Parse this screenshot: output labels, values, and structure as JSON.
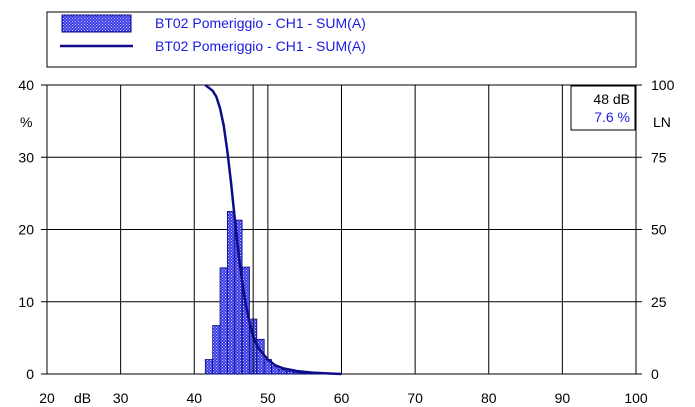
{
  "colors": {
    "bar_fill": "#3a3ae6",
    "bar_edge": "#0a0a80",
    "curve": "#0c0c8c",
    "legend_text": "#1a1ae0",
    "readout_value": "#2020e0",
    "grid": "#000000"
  },
  "chart_data": {
    "type": "bar",
    "title": "",
    "legend": {
      "placement": "top",
      "entries": [
        {
          "kind": "bars",
          "label": "BT02 Pomeriggio - CH1 - SUM(A)"
        },
        {
          "kind": "line",
          "label": "BT02 Pomeriggio - CH1 - SUM(A)"
        }
      ]
    },
    "xlabel": "dB",
    "ylabel_left": "%",
    "ylabel_right": "LN",
    "xlim": [
      20,
      100
    ],
    "ylim_left": [
      0,
      40
    ],
    "ylim_right": [
      0,
      100
    ],
    "x_ticks": [
      "20",
      "30",
      "40",
      "50",
      "60",
      "70",
      "80",
      "90",
      "100"
    ],
    "y_left_ticks": [
      "0",
      "10",
      "20",
      "30",
      "40"
    ],
    "y_right_ticks": [
      "0",
      "25",
      "50",
      "75",
      "100"
    ],
    "grid": true,
    "bin_width_db": 1,
    "series": [
      {
        "name": "BT02 Pomeriggio - CH1 - SUM(A)",
        "kind": "histogram",
        "axis": "left",
        "bins": [
          {
            "x": 42,
            "value": 2.0
          },
          {
            "x": 43,
            "value": 6.7
          },
          {
            "x": 44,
            "value": 14.7
          },
          {
            "x": 45,
            "value": 22.5
          },
          {
            "x": 46,
            "value": 21.3
          },
          {
            "x": 47,
            "value": 14.8
          },
          {
            "x": 48,
            "value": 7.6
          },
          {
            "x": 49,
            "value": 4.8
          },
          {
            "x": 50,
            "value": 2.0
          },
          {
            "x": 51,
            "value": 1.1
          },
          {
            "x": 52,
            "value": 0.6
          },
          {
            "x": 53,
            "value": 0.4
          },
          {
            "x": 54,
            "value": 0.2
          },
          {
            "x": 55,
            "value": 0.1
          },
          {
            "x": 56,
            "value": 0.05
          }
        ]
      },
      {
        "name": "BT02 Pomeriggio - CH1 - SUM(A)",
        "kind": "line",
        "axis": "right",
        "points": [
          [
            41.5,
            100
          ],
          [
            42.5,
            98
          ],
          [
            43.0,
            96
          ],
          [
            43.5,
            92
          ],
          [
            44.0,
            86
          ],
          [
            44.5,
            77
          ],
          [
            45.0,
            66
          ],
          [
            45.5,
            54
          ],
          [
            46.0,
            42
          ],
          [
            46.5,
            32
          ],
          [
            47.0,
            24
          ],
          [
            47.5,
            18
          ],
          [
            48.0,
            13
          ],
          [
            48.5,
            10
          ],
          [
            49.0,
            8
          ],
          [
            50.0,
            5
          ],
          [
            51.0,
            3
          ],
          [
            52.0,
            2
          ],
          [
            54.0,
            1
          ],
          [
            56.0,
            0.5
          ],
          [
            58.0,
            0.2
          ],
          [
            60.0,
            0
          ]
        ]
      }
    ],
    "cursor": {
      "x_db": 48,
      "readout_level": "48 dB",
      "readout_value": "7.6 %"
    }
  }
}
